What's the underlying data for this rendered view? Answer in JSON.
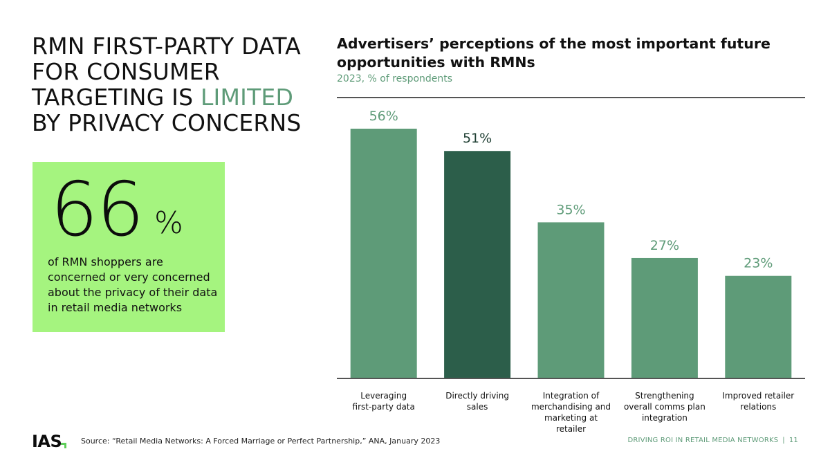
{
  "headline": {
    "line_before": "RMN FIRST-PARTY DATA FOR CONSUMER TARGETING IS",
    "highlight": "LIMITED",
    "line_after": "BY PRIVACY CONCERNS"
  },
  "stat": {
    "number": "66",
    "unit": "%",
    "text": "of RMN shoppers are concerned or very concerned about the privacy of their data in retail media networks"
  },
  "chart_data": {
    "type": "bar",
    "title": "Advertisers’ perceptions of the most important future opportunities with RMNs",
    "subtitle": "2023, % of respondents",
    "categories": [
      [
        "Leveraging",
        "first-party data"
      ],
      [
        "Directly driving",
        "sales"
      ],
      [
        "Integration of",
        "merchandising and",
        "marketing at",
        "retailer"
      ],
      [
        "Strengthening",
        "overall comms plan",
        "integration"
      ],
      [
        "Improved retailer",
        "relations"
      ]
    ],
    "values": [
      56,
      51,
      35,
      27,
      23
    ],
    "value_labels": [
      "56%",
      "51%",
      "35%",
      "27%",
      "23%"
    ],
    "highlight_index": 1,
    "ylim": [
      0,
      60
    ],
    "xlabel": "",
    "ylabel": "",
    "grid": false
  },
  "colors": {
    "bar": "#5e9b78",
    "bar_highlight": "#2c5e4a",
    "label": "#5e9b78",
    "stat_bg": "#a5f47f",
    "accent": "#5e9b78"
  },
  "footer": {
    "logo": "IAS",
    "source": "Source: “Retail Media Networks: A Forced Marriage or Perfect Partnership,” ANA, January 2023",
    "report": "DRIVING ROI IN RETAIL MEDIA NETWORKS",
    "separator": "|",
    "page": "11"
  }
}
